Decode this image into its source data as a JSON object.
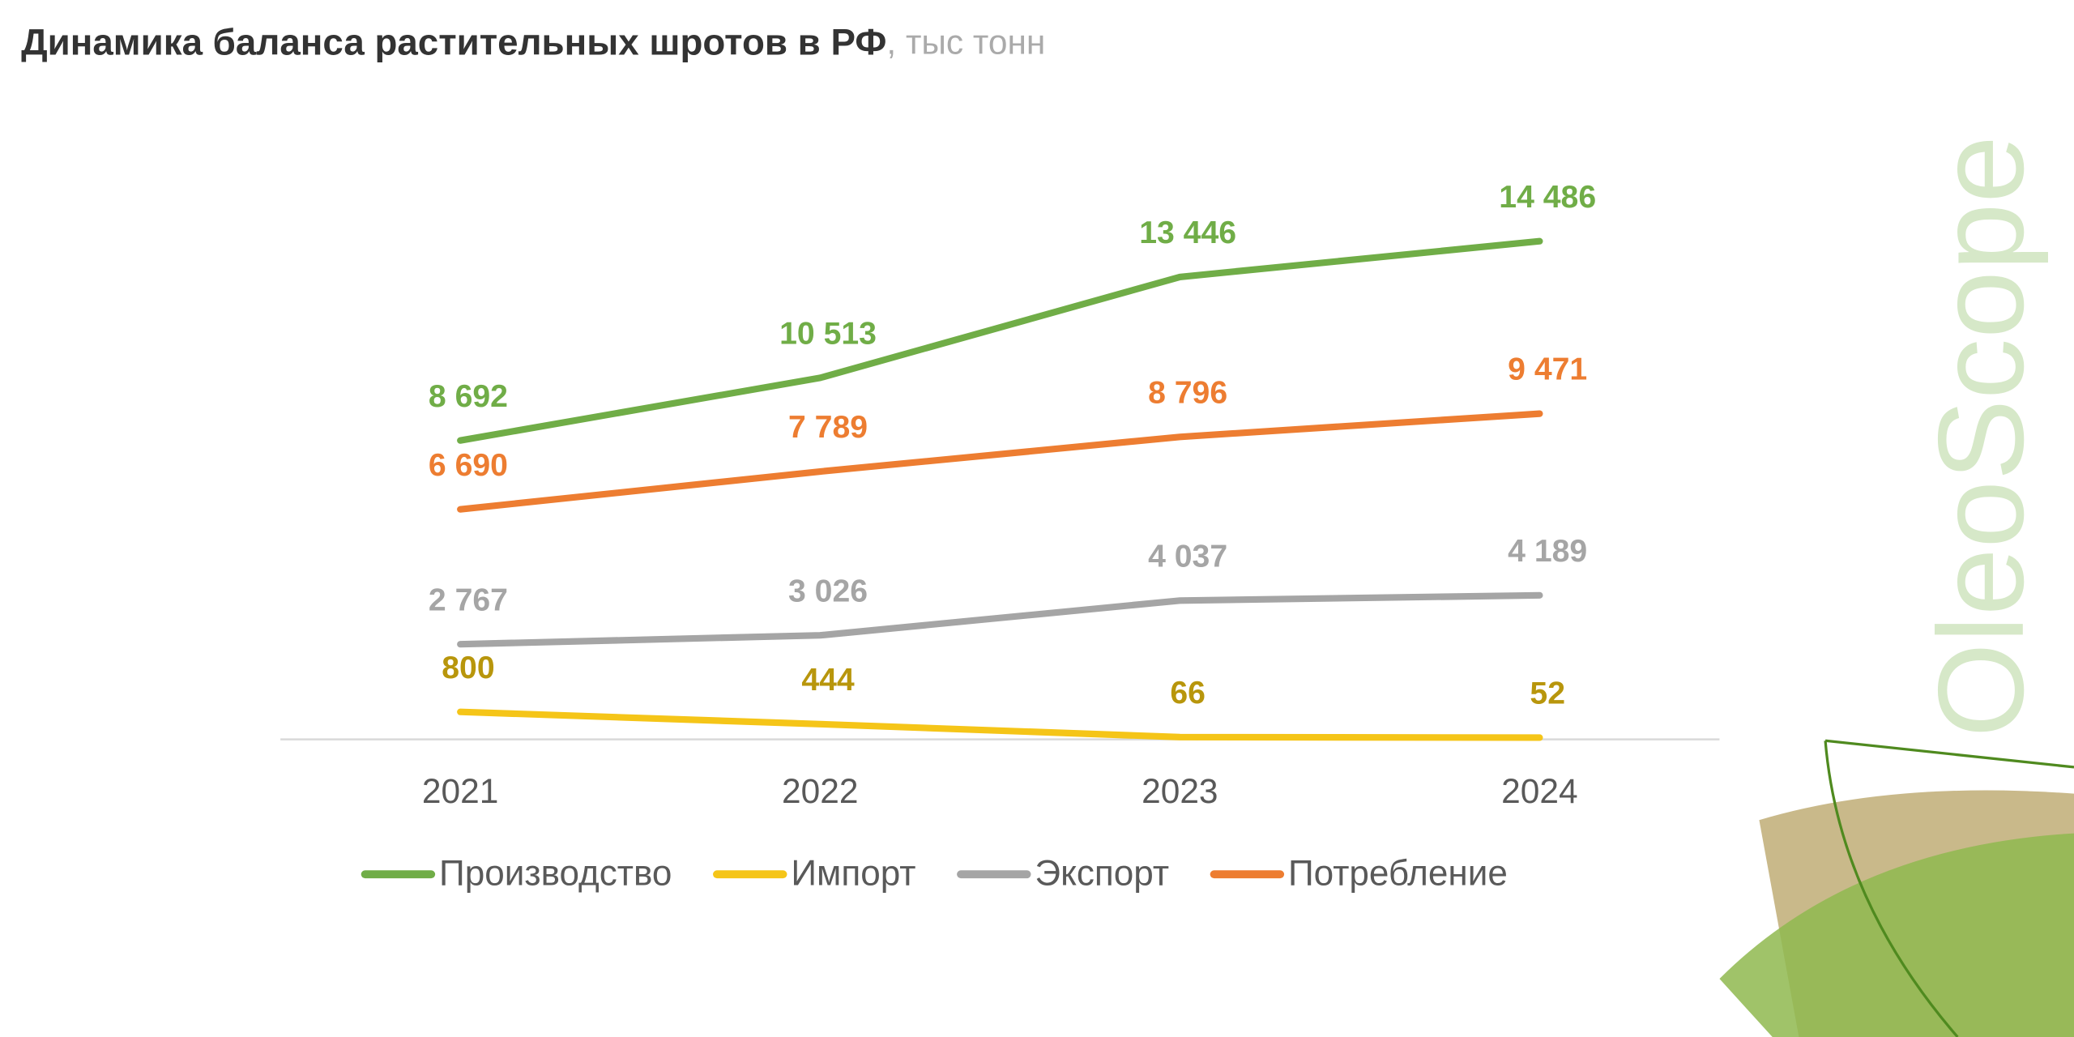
{
  "chart_data": {
    "type": "line",
    "title": "Динамика баланса растительных шротов в РФ",
    "subtitle": ", тыс тонн",
    "brand": "OleoScope",
    "categories": [
      "2021",
      "2022",
      "2023",
      "2024"
    ],
    "ylim": [
      0,
      16000
    ],
    "legend": "bottom",
    "series": [
      {
        "name": "Производство",
        "color": "#70ad47",
        "label_color": "#70ad47",
        "values": [
          8692,
          10513,
          13446,
          14486
        ],
        "value_labels": [
          "8 692",
          "10 513",
          "13 446",
          "14 486"
        ]
      },
      {
        "name": "Импорт",
        "color": "#f5c518",
        "label_color": "#b8960c",
        "values": [
          800,
          444,
          66,
          52
        ],
        "value_labels": [
          "800",
          "444",
          "66",
          "52"
        ]
      },
      {
        "name": "Экспорт",
        "color": "#a5a5a5",
        "label_color": "#a5a5a5",
        "values": [
          2767,
          3026,
          4037,
          4189
        ],
        "value_labels": [
          "2 767",
          "3 026",
          "4 037",
          "4 189"
        ]
      },
      {
        "name": "Потребление",
        "color": "#ed7d31",
        "label_color": "#ed7d31",
        "values": [
          6690,
          7789,
          8796,
          9471
        ],
        "value_labels": [
          "6 690",
          "7 789",
          "8 796",
          "9 471"
        ]
      }
    ]
  }
}
